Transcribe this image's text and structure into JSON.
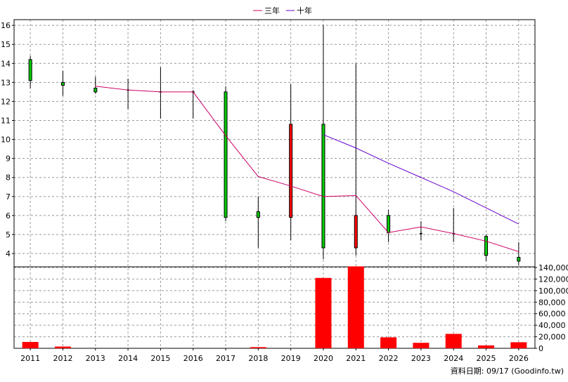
{
  "legend": [
    {
      "label": "三年",
      "color": "#cc0066"
    },
    {
      "label": "十年",
      "color": "#6600cc"
    }
  ],
  "footer": "資料日期: 09/17 (Goodinfo.tw)",
  "chart_data": {
    "type": "candlestick-with-volume",
    "categories": [
      "2011",
      "2012",
      "2013",
      "2014",
      "2015",
      "2016",
      "2017",
      "2018",
      "2019",
      "2020",
      "2021",
      "2022",
      "2023",
      "2024",
      "2025",
      "2026"
    ],
    "price_axis": {
      "min": 3.3,
      "max": 16.3,
      "ticks": [
        4,
        5,
        6,
        7,
        8,
        9,
        10,
        11,
        12,
        13,
        14,
        15,
        16
      ],
      "position": "left"
    },
    "volume_axis": {
      "min": 0,
      "max": 140000,
      "ticks": [
        0,
        20000,
        40000,
        60000,
        80000,
        100000,
        120000,
        140000
      ],
      "tick_labels": [
        "0",
        "20,000",
        "40,000",
        "60,000",
        "80,000",
        "100,000",
        "120,000",
        "140,000"
      ],
      "position": "right"
    },
    "candles": [
      {
        "x": "2011",
        "open": 13.1,
        "close": 14.2,
        "high": 14.4,
        "low": 12.7,
        "color": "green"
      },
      {
        "x": "2012",
        "open": 12.85,
        "close": 13.0,
        "high": 13.6,
        "low": 12.3,
        "color": "green"
      },
      {
        "x": "2013",
        "open": 12.5,
        "close": 12.7,
        "high": 13.3,
        "low": 12.4,
        "color": "green"
      },
      {
        "x": "2014",
        "open": 12.6,
        "close": 12.6,
        "high": 13.2,
        "low": 11.6,
        "color": "doji"
      },
      {
        "x": "2015",
        "open": 12.5,
        "close": 12.5,
        "high": 13.8,
        "low": 11.1,
        "color": "doji"
      },
      {
        "x": "2016",
        "open": 12.5,
        "close": 12.5,
        "high": 12.6,
        "low": 11.1,
        "color": "doji"
      },
      {
        "x": "2017",
        "open": 5.9,
        "close": 12.5,
        "high": 12.8,
        "low": 5.7,
        "color": "green"
      },
      {
        "x": "2018",
        "open": 5.9,
        "close": 6.2,
        "high": 7.0,
        "low": 4.3,
        "color": "green"
      },
      {
        "x": "2019",
        "open": 10.8,
        "close": 5.9,
        "high": 12.9,
        "low": 4.7,
        "color": "red"
      },
      {
        "x": "2020",
        "open": 4.3,
        "close": 10.8,
        "high": 16.0,
        "low": 3.7,
        "color": "green"
      },
      {
        "x": "2021",
        "open": 6.0,
        "close": 4.3,
        "high": 14.0,
        "low": 3.9,
        "color": "red"
      },
      {
        "x": "2022",
        "open": 5.1,
        "close": 6.0,
        "high": 6.3,
        "low": 4.6,
        "color": "green"
      },
      {
        "x": "2023",
        "open": 5.05,
        "close": 5.05,
        "high": 5.7,
        "low": 4.7,
        "color": "doji"
      },
      {
        "x": "2024",
        "open": 5.05,
        "close": 5.05,
        "high": 6.4,
        "low": 4.6,
        "color": "doji"
      },
      {
        "x": "2025",
        "open": 3.9,
        "close": 4.9,
        "high": 5.0,
        "low": 3.6,
        "color": "green"
      },
      {
        "x": "2026",
        "open": 3.6,
        "close": 3.8,
        "high": 4.6,
        "low": 3.4,
        "color": "green"
      }
    ],
    "series": [
      {
        "name": "三年",
        "color": "#cc0066",
        "x": [
          "2013",
          "2014",
          "2015",
          "2016",
          "2017",
          "2018",
          "2019",
          "2020",
          "2021",
          "2022",
          "2023",
          "2024",
          "2025",
          "2026"
        ],
        "values": [
          12.8,
          12.6,
          12.5,
          12.5,
          10.2,
          8.05,
          7.55,
          7.0,
          7.05,
          5.1,
          5.4,
          5.05,
          4.65,
          4.1
        ]
      },
      {
        "name": "十年",
        "color": "#6600cc",
        "x": [
          "2020",
          "2021",
          "2022",
          "2023",
          "2024",
          "2025",
          "2026"
        ],
        "values": [
          10.25,
          9.55,
          8.75,
          8.0,
          7.25,
          6.4,
          5.55
        ]
      }
    ],
    "volume": [
      11000,
      3000,
      0,
      0,
      0,
      0,
      0,
      2000,
      0,
      122000,
      142000,
      19000,
      9500,
      25000,
      5000,
      10500
    ],
    "grid": true,
    "legend_position": "top-center"
  }
}
